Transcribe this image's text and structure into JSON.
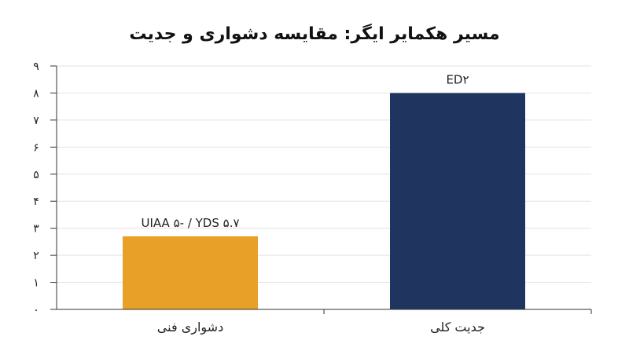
{
  "chart_data": {
    "type": "bar",
    "title": "مسیر هکمایر ایگر: مقایسه دشواری و جدیت",
    "categories": [
      "دشواری فنی",
      "جدیت کلی"
    ],
    "values": [
      2.7,
      8
    ],
    "data_labels": [
      "UIAA ۵- / YDS ۵.۷",
      "ED۲"
    ],
    "colors": [
      "#E8A028",
      "#1F3560"
    ],
    "ylim": [
      0,
      9
    ],
    "yticks": [
      0,
      1,
      2,
      3,
      4,
      5,
      6,
      7,
      8,
      9
    ],
    "ytick_labels": [
      "۰",
      "۱",
      "۲",
      "۳",
      "۴",
      "۵",
      "۶",
      "۷",
      "۸",
      "۹"
    ],
    "xlabel": "",
    "ylabel": "",
    "grid": true
  }
}
